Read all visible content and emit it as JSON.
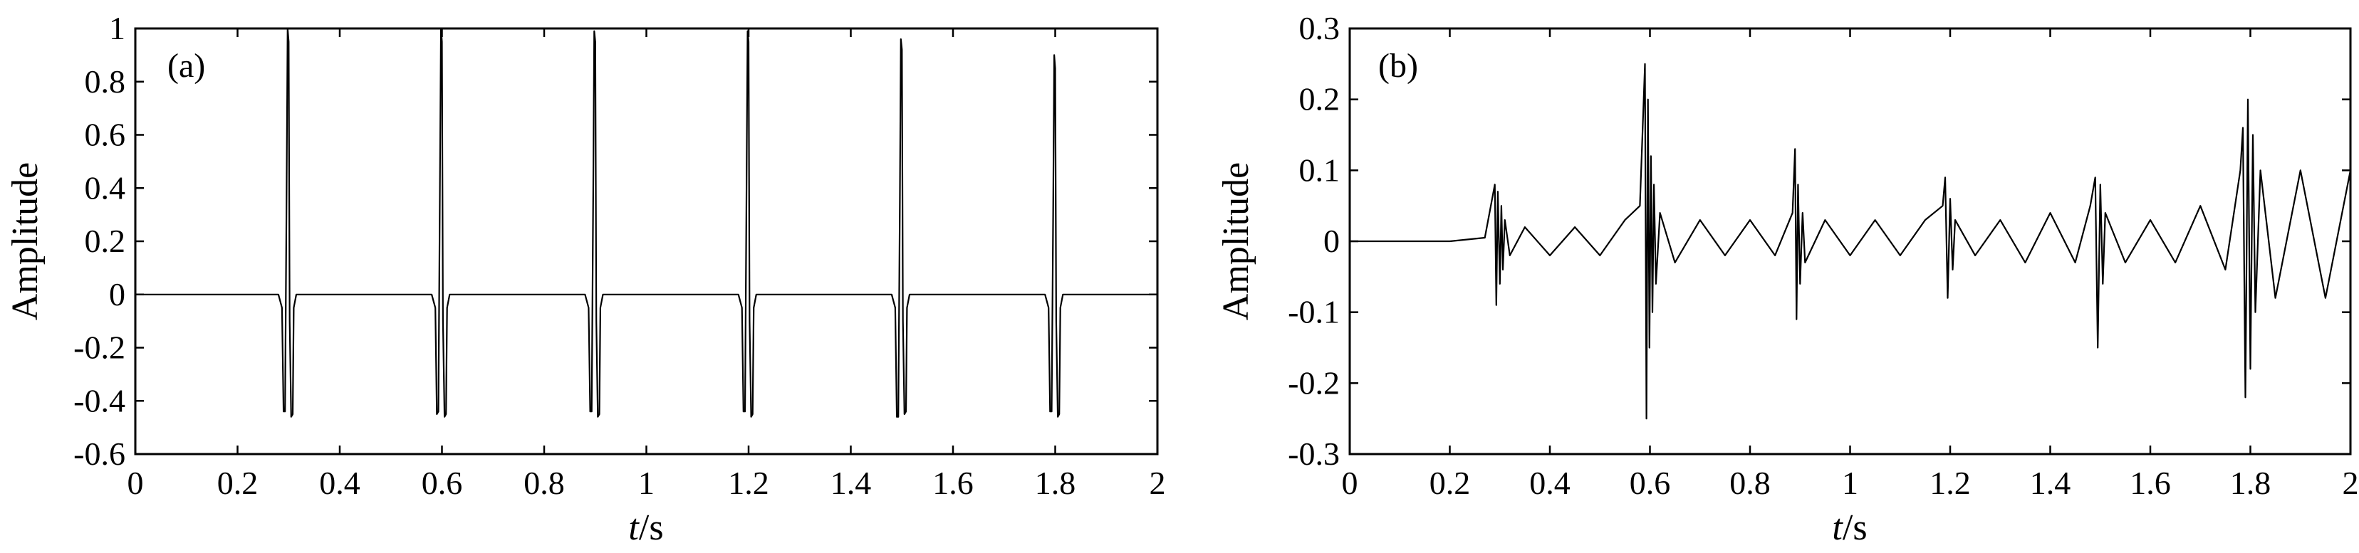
{
  "figure": {
    "panels": [
      {
        "panel_label": "(a)",
        "xlabel_italic": "t",
        "xlabel_unit": "/s",
        "ylabel": "Amplitude"
      },
      {
        "panel_label": "(b)",
        "xlabel_italic": "t",
        "xlabel_unit": "/s",
        "ylabel": "Amplitude"
      }
    ]
  },
  "chart_data": [
    {
      "type": "line",
      "title": "",
      "panel_label": "(a)",
      "xlabel": "t/s",
      "ylabel": "Amplitude",
      "xlim": [
        0,
        2
      ],
      "ylim": [
        -0.6,
        1
      ],
      "xticks": [
        0,
        0.2,
        0.4,
        0.6,
        0.8,
        1,
        1.2,
        1.4,
        1.6,
        1.8,
        2
      ],
      "xticklabels": [
        "0",
        "0.2",
        "0.4",
        "0.6",
        "0.8",
        "1",
        "1.2",
        "1.4",
        "1.6",
        "1.8",
        "2"
      ],
      "yticks": [
        -0.6,
        -0.4,
        -0.2,
        0,
        0.2,
        0.4,
        0.6,
        0.8,
        1
      ],
      "yticklabels": [
        "-0.6",
        "-0.4",
        "-0.2",
        "0",
        "0.2",
        "0.4",
        "0.6",
        "0.8",
        "1"
      ],
      "grid": false,
      "series": [
        {
          "color": "#000000",
          "x": [
            0,
            0.28,
            0.287,
            0.29,
            0.293,
            0.296,
            0.298,
            0.3,
            0.302,
            0.305,
            0.308,
            0.31,
            0.315,
            0.32,
            0.58,
            0.587,
            0.59,
            0.593,
            0.596,
            0.598,
            0.6,
            0.602,
            0.605,
            0.608,
            0.61,
            0.615,
            0.62,
            0.88,
            0.887,
            0.89,
            0.893,
            0.896,
            0.898,
            0.9,
            0.902,
            0.905,
            0.908,
            0.91,
            0.915,
            0.92,
            1.18,
            1.187,
            1.19,
            1.193,
            1.196,
            1.198,
            1.2,
            1.202,
            1.205,
            1.208,
            1.21,
            1.215,
            1.22,
            1.48,
            1.487,
            1.49,
            1.493,
            1.496,
            1.498,
            1.5,
            1.502,
            1.505,
            1.508,
            1.51,
            1.515,
            1.52,
            1.78,
            1.787,
            1.79,
            1.793,
            1.796,
            1.798,
            1.8,
            1.802,
            1.805,
            1.808,
            1.81,
            1.815,
            1.82,
            2
          ],
          "y": [
            0,
            0,
            -0.05,
            -0.44,
            -0.44,
            0.4,
            1.0,
            0.95,
            -0.1,
            -0.46,
            -0.45,
            -0.05,
            0,
            0,
            0,
            -0.05,
            -0.45,
            -0.44,
            0.4,
            1.0,
            0.95,
            -0.1,
            -0.46,
            -0.45,
            -0.05,
            0,
            0,
            0,
            -0.05,
            -0.44,
            -0.44,
            0.4,
            0.99,
            0.95,
            -0.1,
            -0.46,
            -0.45,
            -0.05,
            0,
            0,
            0,
            -0.05,
            -0.44,
            -0.44,
            0.4,
            0.99,
            0.95,
            -0.1,
            -0.46,
            -0.45,
            -0.05,
            0,
            0,
            0,
            -0.05,
            -0.46,
            -0.46,
            0.35,
            0.96,
            0.92,
            -0.1,
            -0.45,
            -0.44,
            -0.05,
            0,
            0,
            0,
            -0.05,
            -0.44,
            -0.44,
            0.3,
            0.9,
            0.85,
            -0.1,
            -0.46,
            -0.45,
            -0.05,
            0,
            0,
            0
          ]
        }
      ]
    },
    {
      "type": "line",
      "title": "",
      "panel_label": "(b)",
      "xlabel": "t/s",
      "ylabel": "Amplitude",
      "xlim": [
        0,
        2
      ],
      "ylim": [
        -0.3,
        0.3
      ],
      "xticks": [
        0,
        0.2,
        0.4,
        0.6,
        0.8,
        1,
        1.2,
        1.4,
        1.6,
        1.8,
        2
      ],
      "xticklabels": [
        "0",
        "0.2",
        "0.4",
        "0.6",
        "0.8",
        "1",
        "1.2",
        "1.4",
        "1.6",
        "1.8",
        "2"
      ],
      "yticks": [
        -0.3,
        -0.2,
        -0.1,
        0,
        0.1,
        0.2,
        0.3
      ],
      "yticklabels": [
        "-0.3",
        "-0.2",
        "-0.1",
        "0",
        "0.1",
        "0.2",
        "0.3"
      ],
      "grid": false,
      "series": [
        {
          "color": "#000000",
          "x": [
            0,
            0.1,
            0.2,
            0.27,
            0.29,
            0.293,
            0.296,
            0.3,
            0.303,
            0.306,
            0.31,
            0.32,
            0.35,
            0.4,
            0.45,
            0.5,
            0.55,
            0.58,
            0.59,
            0.593,
            0.596,
            0.599,
            0.602,
            0.605,
            0.608,
            0.612,
            0.62,
            0.65,
            0.7,
            0.75,
            0.8,
            0.85,
            0.885,
            0.89,
            0.893,
            0.896,
            0.9,
            0.905,
            0.91,
            0.95,
            1.0,
            1.05,
            1.1,
            1.15,
            1.185,
            1.19,
            1.195,
            1.2,
            1.205,
            1.21,
            1.25,
            1.3,
            1.35,
            1.4,
            1.45,
            1.48,
            1.49,
            1.495,
            1.5,
            1.505,
            1.51,
            1.55,
            1.6,
            1.65,
            1.7,
            1.75,
            1.78,
            1.785,
            1.79,
            1.795,
            1.8,
            1.805,
            1.81,
            1.82,
            1.85,
            1.9,
            1.95,
            2
          ],
          "y": [
            0,
            0,
            0,
            0.005,
            0.08,
            -0.09,
            0.07,
            -0.06,
            0.05,
            -0.04,
            0.03,
            -0.02,
            0.02,
            -0.02,
            0.02,
            -0.02,
            0.03,
            0.05,
            0.25,
            -0.25,
            0.2,
            -0.15,
            0.12,
            -0.1,
            0.08,
            -0.06,
            0.04,
            -0.03,
            0.03,
            -0.02,
            0.03,
            -0.02,
            0.04,
            0.13,
            -0.11,
            0.08,
            -0.06,
            0.04,
            -0.03,
            0.03,
            -0.02,
            0.03,
            -0.02,
            0.03,
            0.05,
            0.09,
            -0.08,
            0.06,
            -0.04,
            0.03,
            -0.02,
            0.03,
            -0.03,
            0.04,
            -0.03,
            0.05,
            0.09,
            -0.15,
            0.08,
            -0.06,
            0.04,
            -0.03,
            0.03,
            -0.03,
            0.05,
            -0.04,
            0.1,
            0.16,
            -0.22,
            0.2,
            -0.18,
            0.15,
            -0.1,
            0.1,
            -0.08,
            0.1,
            -0.08,
            0.1
          ]
        }
      ]
    }
  ]
}
